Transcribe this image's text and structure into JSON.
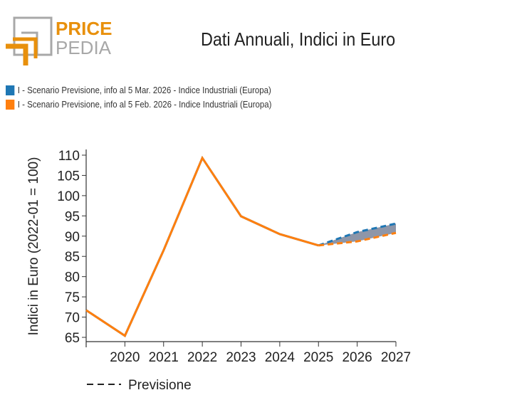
{
  "logo": {
    "text_top": "PRICE",
    "text_bottom": "PEDIA"
  },
  "chart_data": {
    "type": "line",
    "title": "Dati Annuali, Indici in Euro",
    "ylabel": "Indici in Euro (2022-01 = 100)",
    "xlabel": "",
    "ylim": [
      64,
      111
    ],
    "xlim": [
      2019,
      2027
    ],
    "yticks": [
      65,
      70,
      75,
      80,
      85,
      90,
      95,
      100,
      105,
      110
    ],
    "xticks": [
      2020,
      2021,
      2022,
      2023,
      2024,
      2025,
      2026,
      2027
    ],
    "series": [
      {
        "name": "I - Scenario Previsione, info al 5 Mar. 2026 - Indice Industriali (Europa)",
        "color": "#1f77b4",
        "x": [
          2019,
          2020,
          2021,
          2022,
          2023,
          2024,
          2025,
          2026,
          2027
        ],
        "values": [
          71.7,
          65.4,
          86.5,
          109.3,
          94.9,
          90.5,
          87.7,
          91.0,
          93.1
        ]
      },
      {
        "name": "I - Scenario Previsione, info al 5 Feb. 2026 - Indice Industriali (Europa)",
        "color": "#ff7f0e",
        "x": [
          2019,
          2020,
          2021,
          2022,
          2023,
          2024,
          2025,
          2026,
          2027
        ],
        "values": [
          71.7,
          65.4,
          86.5,
          109.3,
          94.9,
          90.5,
          87.7,
          88.7,
          90.8
        ]
      }
    ],
    "forecast_start": 2025,
    "band_color": "#8e96a8",
    "bottom_legend": "Previsione"
  }
}
